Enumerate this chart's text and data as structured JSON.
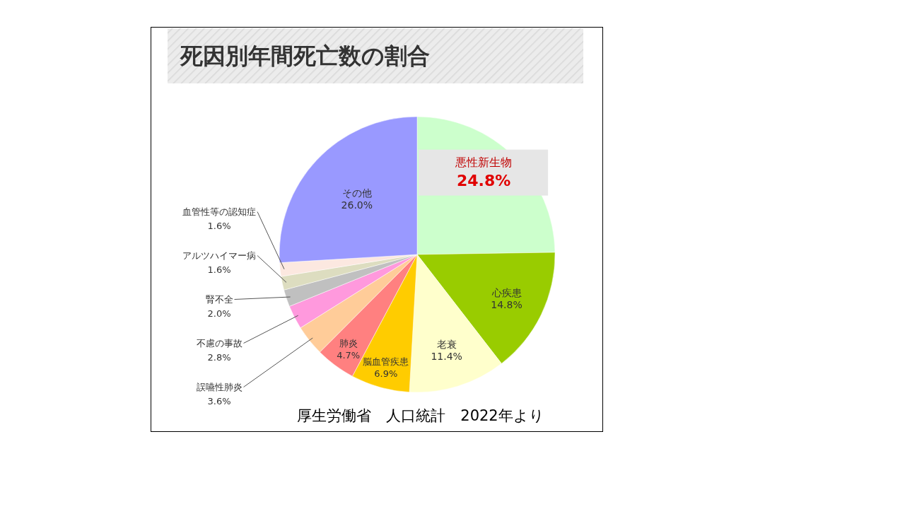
{
  "chart_data": {
    "type": "pie",
    "title": "死因別年間死亡数の割合",
    "categories": [
      "悪性新生物",
      "心疾患",
      "老衰",
      "脳血管疾患",
      "肺炎",
      "誤嚥性肺炎",
      "不慮の事故",
      "腎不全",
      "アルツハイマー病",
      "血管性等の認知症",
      "その他"
    ],
    "values": [
      24.8,
      14.8,
      11.4,
      6.9,
      4.7,
      3.6,
      2.8,
      2.0,
      1.6,
      1.6,
      26.0
    ],
    "value_labels": [
      "24.8%",
      "14.8%",
      "11.4%",
      "6.9%",
      "4.7%",
      "3.6%",
      "2.8%",
      "2.0%",
      "1.6%",
      "1.6%",
      "26.0%"
    ],
    "colors": [
      "#ccffcc",
      "#99cc00",
      "#ffffcc",
      "#ffcc00",
      "#ff8080",
      "#ffcc99",
      "#ff99dd",
      "#c0c0c0",
      "#ddddc0",
      "#fce8e0",
      "#9999ff"
    ],
    "annotations": [
      "厚生労働省　人口統計　2022年より"
    ]
  }
}
